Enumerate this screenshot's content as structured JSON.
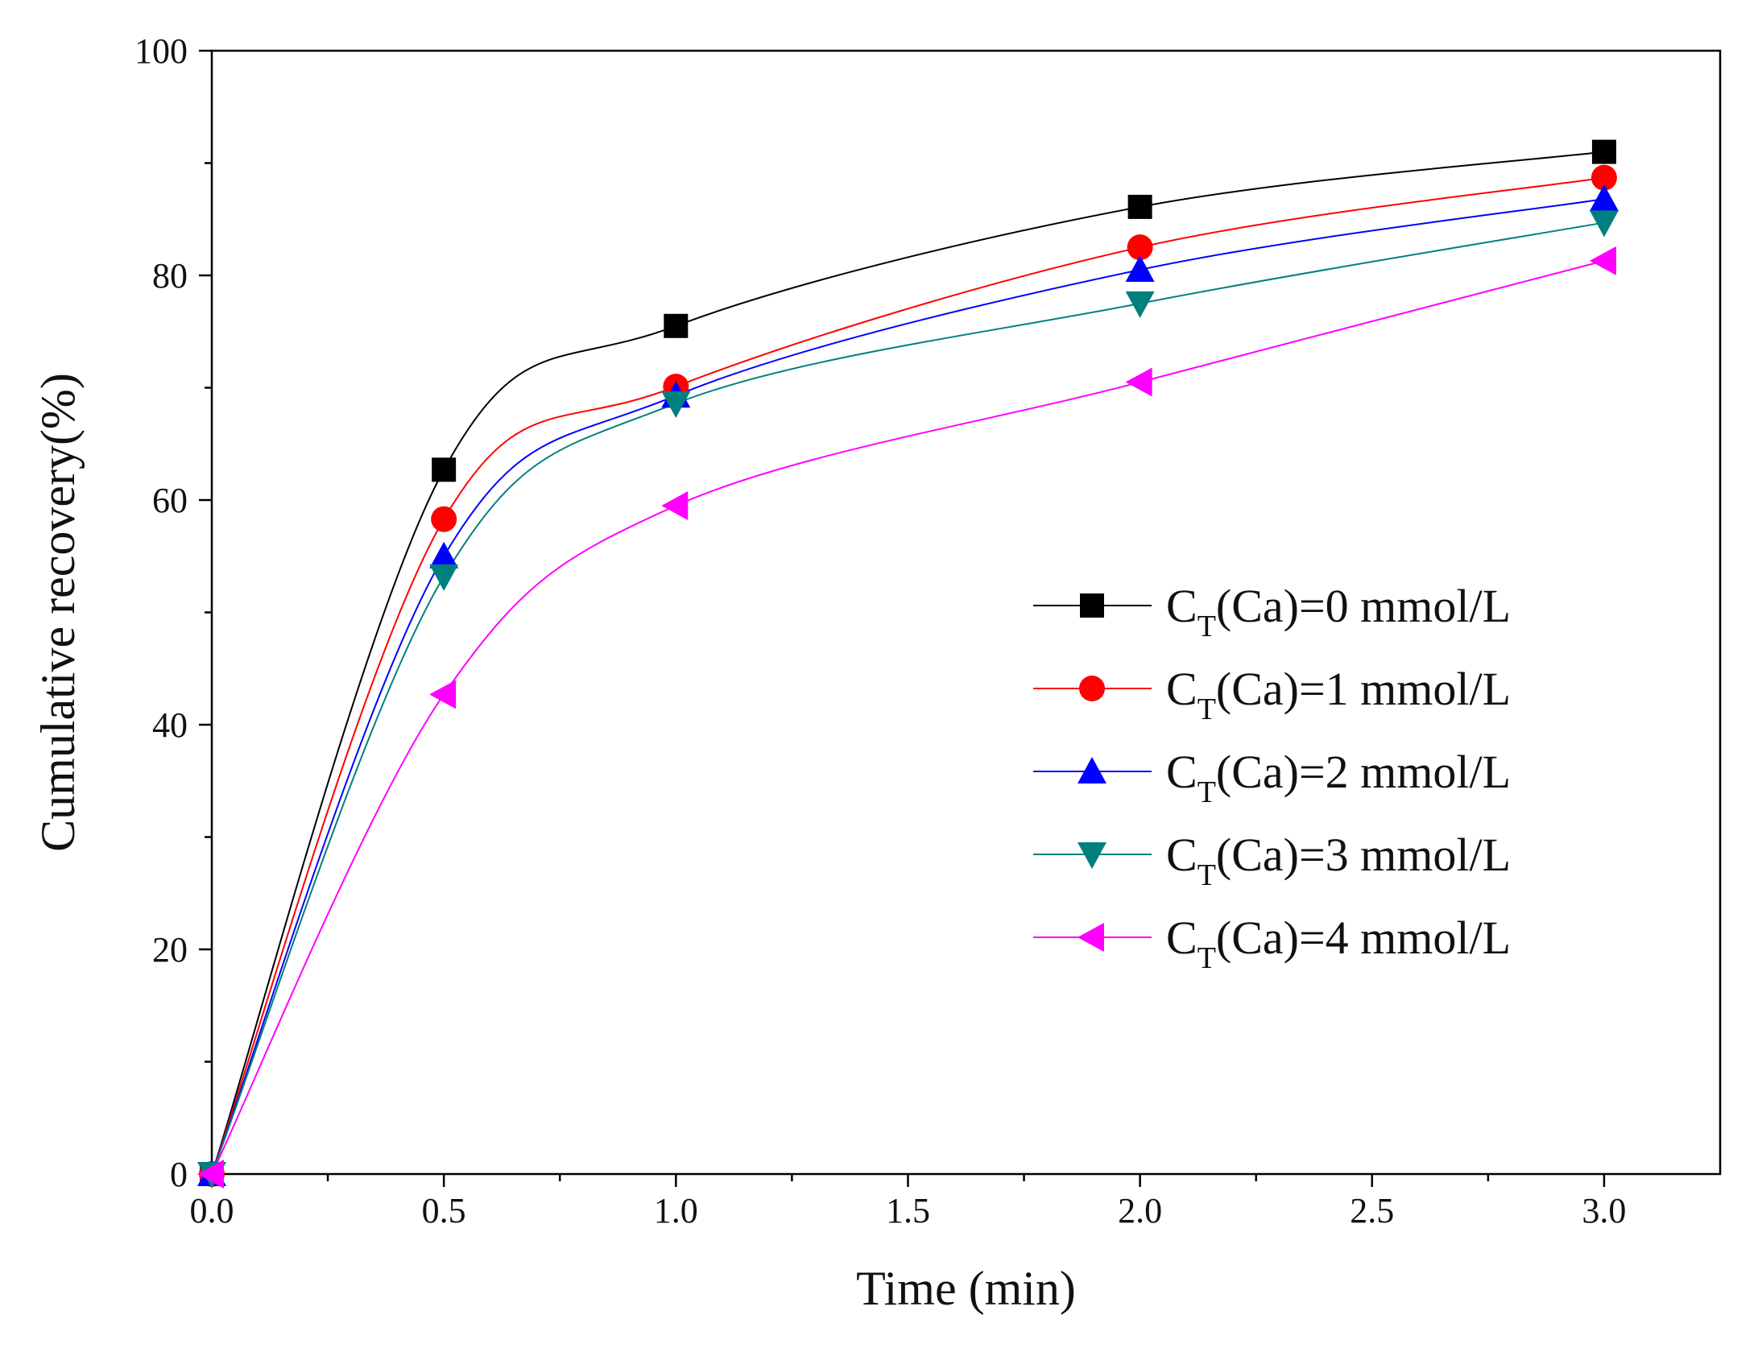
{
  "chart_data": {
    "type": "line",
    "title": "",
    "xlabel": "Time (min)",
    "ylabel": "Cumulative recovery(%)",
    "xlim": [
      0,
      3.25
    ],
    "ylim": [
      0,
      100
    ],
    "xticks": [
      0.0,
      0.5,
      1.0,
      1.5,
      2.0,
      2.5,
      3.0
    ],
    "xtick_labels": [
      "0.0",
      "0.5",
      "1.0",
      "1.5",
      "2.0",
      "2.5",
      "3.0"
    ],
    "yticks": [
      0,
      20,
      40,
      60,
      80,
      100
    ],
    "ytick_labels": [
      "0",
      "20",
      "40",
      "60",
      "80",
      "100"
    ],
    "grid": false,
    "legend_position": "center-right",
    "x": [
      0,
      0.5,
      1.0,
      2.0,
      3.0
    ],
    "series": [
      {
        "name": "CT(Ca)=0 mmol/L",
        "legend_main": "C",
        "legend_sub": "T",
        "legend_rest": "(Ca)=0 mmol/L",
        "color": "#000000",
        "marker": "square",
        "values": [
          0,
          62.7,
          75.5,
          86.1,
          91.0
        ]
      },
      {
        "name": "CT(Ca)=1 mmol/L",
        "legend_main": "C",
        "legend_sub": "T",
        "legend_rest": "(Ca)=1 mmol/L",
        "color": "#ff0000",
        "marker": "circle",
        "values": [
          0,
          58.3,
          70.1,
          82.5,
          88.7
        ]
      },
      {
        "name": "CT(Ca)=2 mmol/L",
        "legend_main": "C",
        "legend_sub": "T",
        "legend_rest": "(Ca)=2 mmol/L",
        "color": "#0000ff",
        "marker": "triangle-up",
        "values": [
          0,
          55.0,
          69.3,
          80.5,
          86.8
        ]
      },
      {
        "name": "CT(Ca)=3 mmol/L",
        "legend_main": "C",
        "legend_sub": "T",
        "legend_rest": "(Ca)=3 mmol/L",
        "color": "#007f7f",
        "marker": "triangle-down",
        "values": [
          0,
          53.2,
          68.6,
          77.5,
          84.7
        ]
      },
      {
        "name": "CT(Ca)=4 mmol/L",
        "legend_main": "C",
        "legend_sub": "T",
        "legend_rest": "(Ca)=4 mmol/L",
        "color": "#ff00ff",
        "marker": "triangle-left",
        "values": [
          0,
          42.7,
          59.5,
          70.5,
          81.3
        ]
      }
    ]
  }
}
